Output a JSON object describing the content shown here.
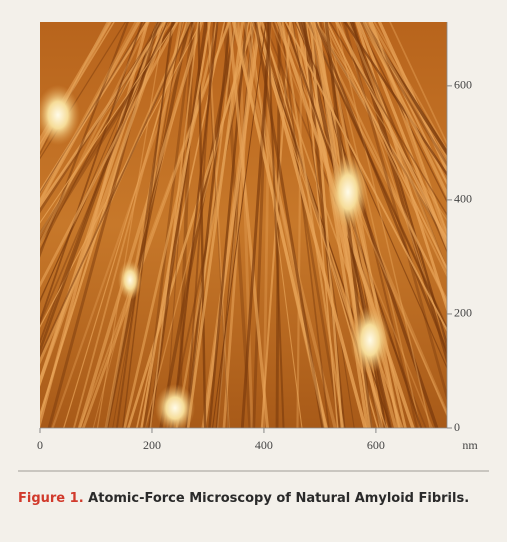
{
  "figure": {
    "caption_label": "Figure 1.",
    "caption_text": "Atomic-Force Microscopy of Natural Amyloid Fibrils.",
    "x_unit": "nm",
    "xlim": [
      0,
      727
    ],
    "xticks": [
      0,
      200,
      400,
      600
    ],
    "ylim": [
      0,
      712
    ],
    "yticks": [
      0,
      200,
      400,
      600
    ]
  }
}
